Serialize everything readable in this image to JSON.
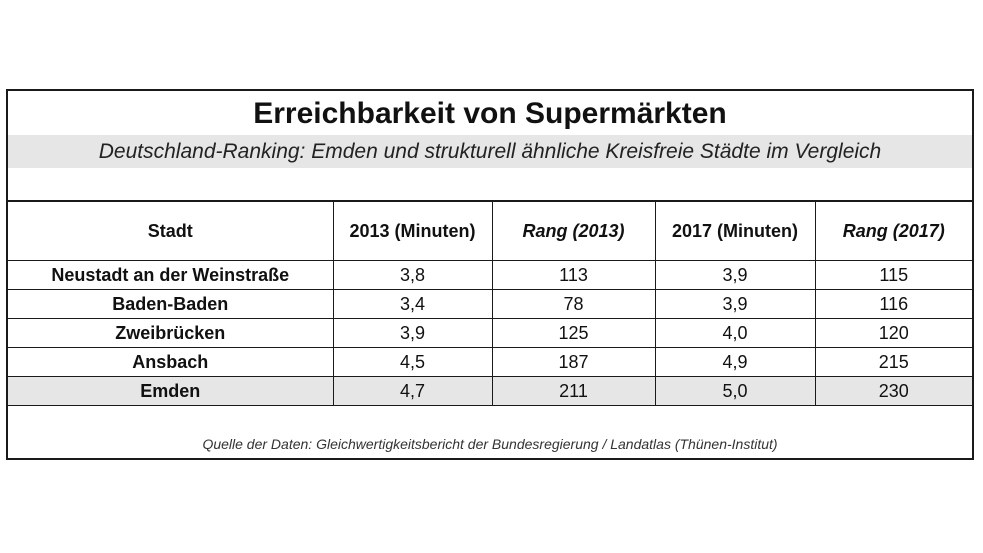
{
  "title": "Erreichbarkeit von Supermärkten",
  "subtitle": "Deutschland-Ranking: Emden und strukturell ähnliche Kreisfreie Städte im Vergleich",
  "columns": [
    "Stadt",
    "2013 (Minuten)",
    "Rang (2013)",
    "2017 (Minuten)",
    "Rang (2017)"
  ],
  "rows": [
    {
      "city": "Neustadt an der Weinstraße",
      "min2013": "3,8",
      "rank2013": "113",
      "min2017": "3,9",
      "rank2017": "115"
    },
    {
      "city": "Baden-Baden",
      "min2013": "3,4",
      "rank2013": "78",
      "min2017": "3,9",
      "rank2017": "116"
    },
    {
      "city": "Zweibrücken",
      "min2013": "3,9",
      "rank2013": "125",
      "min2017": "4,0",
      "rank2017": "120"
    },
    {
      "city": "Ansbach",
      "min2013": "4,5",
      "rank2013": "187",
      "min2017": "4,9",
      "rank2017": "215"
    },
    {
      "city": "Emden",
      "min2013": "4,7",
      "rank2013": "211",
      "min2017": "5,0",
      "rank2017": "230"
    }
  ],
  "highlight_row": "Emden",
  "source": "Quelle der Daten: Gleichwertigkeitsbericht der Bundesregierung / Landatlas (Thünen-Institut)",
  "colors": {
    "highlight": "#e6e6e6",
    "border": "#1a1a1a"
  }
}
